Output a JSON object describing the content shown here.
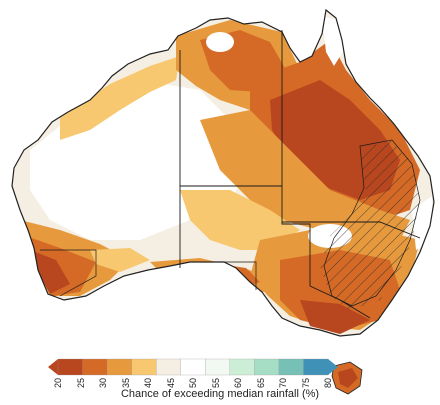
{
  "legend": {
    "title": "Chance of exceeding median rainfall (%)",
    "ticks": [
      "20",
      "25",
      "30",
      "35",
      "40",
      "45",
      "50",
      "55",
      "60",
      "65",
      "70",
      "75",
      "80"
    ],
    "colors": [
      "#b8461e",
      "#d46a26",
      "#e79a3d",
      "#f7c870",
      "#f5eee2",
      "#ffffff",
      "#f2f8f2",
      "#cdeed6",
      "#a5ddc5",
      "#76c0b6",
      "#3f91b8"
    ]
  },
  "map": {
    "land_outline": "#222222",
    "border_color": "#1a1a1a",
    "hatch_region": "south-east",
    "dry_colors": {
      "darkest": "#b8461e",
      "dark": "#d46a26",
      "mid": "#e79a3d",
      "light": "#f7c870",
      "pale": "#f5eee2",
      "white": "#ffffff"
    }
  }
}
